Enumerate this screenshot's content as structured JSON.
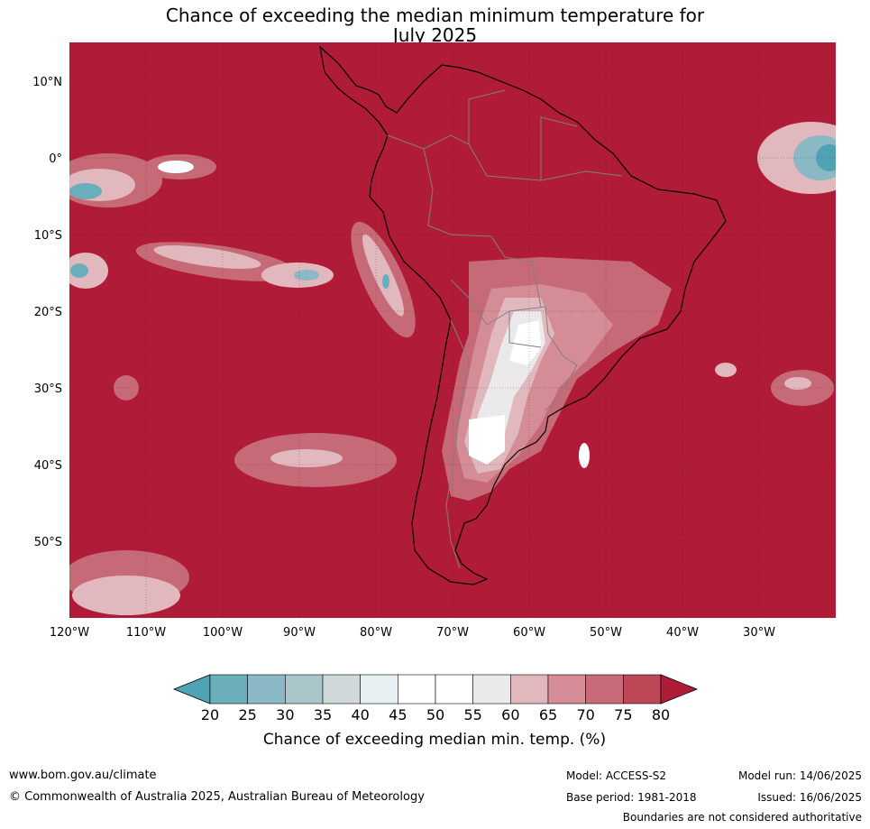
{
  "title": {
    "line1": "Chance of exceeding the median minimum temperature for",
    "line2": "July 2025"
  },
  "map": {
    "lat_ticks": [
      {
        "label": "10°N",
        "lat": 10
      },
      {
        "label": "0°",
        "lat": 0
      },
      {
        "label": "10°S",
        "lat": -10
      },
      {
        "label": "20°S",
        "lat": -20
      },
      {
        "label": "30°S",
        "lat": -30
      },
      {
        "label": "40°S",
        "lat": -40
      },
      {
        "label": "50°S",
        "lat": -50
      }
    ],
    "lon_ticks": [
      {
        "label": "120°W",
        "lon": -120
      },
      {
        "label": "110°W",
        "lon": -110
      },
      {
        "label": "100°W",
        "lon": -100
      },
      {
        "label": "90°W",
        "lon": -90
      },
      {
        "label": "80°W",
        "lon": -80
      },
      {
        "label": "70°W",
        "lon": -70
      },
      {
        "label": "60°W",
        "lon": -60
      },
      {
        "label": "50°W",
        "lon": -50
      },
      {
        "label": "40°W",
        "lon": -40
      },
      {
        "label": "30°W",
        "lon": -30
      }
    ]
  },
  "legend": {
    "labels": [
      "20",
      "25",
      "30",
      "35",
      "40",
      "45",
      "50",
      "55",
      "60",
      "65",
      "70",
      "75",
      "80"
    ],
    "colors": [
      "#6aadbb",
      "#8bb8c5",
      "#a9c7cb",
      "#d0d8da",
      "#e8eff2",
      "#ffffff",
      "#ffffff",
      "#ebe9ea",
      "#e1b8bd",
      "#d48c96",
      "#c76a77",
      "#bd4657"
    ],
    "under_color": "#4ea4b4",
    "over_color": "#b01c38",
    "title": "Chance of exceeding median min. temp. (%)"
  },
  "colors": {
    "background_fill": "#b01c38"
  },
  "footer": {
    "website": "www.bom.gov.au/climate",
    "copyright": "© Commonwealth of Australia 2025, Australian Bureau of Meteorology",
    "model": "Model: ACCESS-S2",
    "base_period": "Base period: 1981-2018",
    "model_run": "Model run: 14/06/2025",
    "issued": "Issued: 16/06/2025",
    "disclaimer": "Boundaries are not considered authoritative"
  }
}
